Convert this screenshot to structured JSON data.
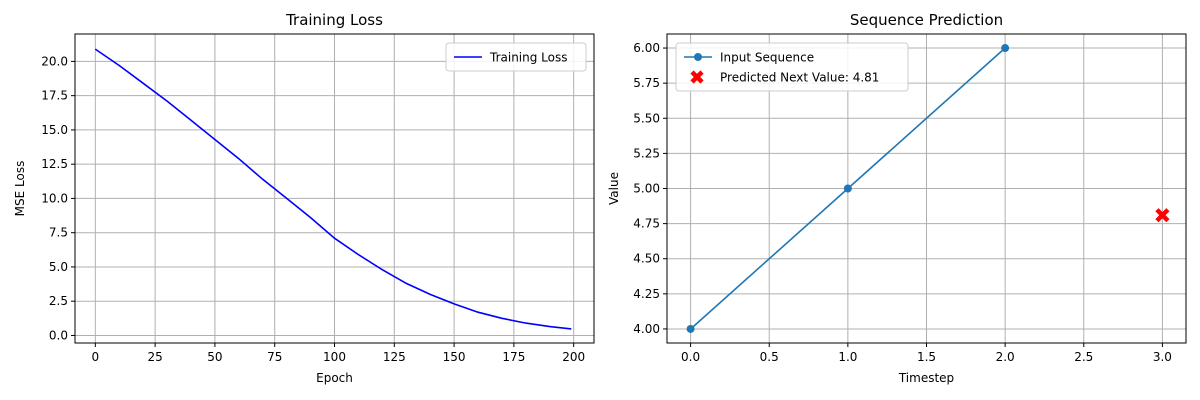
{
  "chart_data": [
    {
      "type": "line",
      "title": "Training Loss",
      "xlabel": "Epoch",
      "ylabel": "MSE Loss",
      "xlim": [
        -8.5,
        208.5
      ],
      "ylim": [
        -0.55,
        22.0
      ],
      "xticks": [
        0,
        25,
        50,
        75,
        100,
        125,
        150,
        175,
        200
      ],
      "xtick_labels": [
        "0",
        "25",
        "50",
        "75",
        "100",
        "125",
        "150",
        "175",
        "200"
      ],
      "yticks": [
        0,
        2.5,
        5,
        7.5,
        10,
        12.5,
        15,
        17.5,
        20
      ],
      "ytick_labels": [
        "0.0",
        "2.5",
        "5.0",
        "7.5",
        "10.0",
        "12.5",
        "15.0",
        "17.5",
        "20.0"
      ],
      "grid": true,
      "legend": "upper-right",
      "series": [
        {
          "name": "Training Loss",
          "color": "#0000ff",
          "x": [
            0,
            10,
            20,
            30,
            40,
            50,
            60,
            70,
            80,
            90,
            100,
            110,
            120,
            130,
            140,
            150,
            160,
            170,
            180,
            190,
            199
          ],
          "y": [
            20.9,
            19.7,
            18.4,
            17.1,
            15.7,
            14.3,
            12.9,
            11.4,
            10.0,
            8.6,
            7.1,
            5.9,
            4.8,
            3.8,
            3.0,
            2.3,
            1.7,
            1.25,
            0.9,
            0.65,
            0.48
          ]
        }
      ]
    },
    {
      "type": "line",
      "title": "Sequence Prediction",
      "xlabel": "Timestep",
      "ylabel": "Value",
      "xlim": [
        -0.15,
        3.15
      ],
      "ylim": [
        3.9,
        6.1
      ],
      "xticks": [
        0,
        0.5,
        1,
        1.5,
        2,
        2.5,
        3
      ],
      "xtick_labels": [
        "0.0",
        "0.5",
        "1.0",
        "1.5",
        "2.0",
        "2.5",
        "3.0"
      ],
      "yticks": [
        4.0,
        4.25,
        4.5,
        4.75,
        5.0,
        5.25,
        5.5,
        5.75,
        6.0
      ],
      "ytick_labels": [
        "4.00",
        "4.25",
        "4.50",
        "4.75",
        "5.00",
        "5.25",
        "5.50",
        "5.75",
        "6.00"
      ],
      "grid": true,
      "legend": "upper-left",
      "series": [
        {
          "name": "Input Sequence",
          "color": "#1f77b4",
          "marker": "circle",
          "x": [
            0,
            1,
            2
          ],
          "y": [
            4.0,
            5.0,
            6.0
          ]
        },
        {
          "name": "Predicted Next Value: 4.81",
          "color": "#ff0000",
          "marker": "x",
          "x": [
            3
          ],
          "y": [
            4.81
          ]
        }
      ]
    }
  ]
}
